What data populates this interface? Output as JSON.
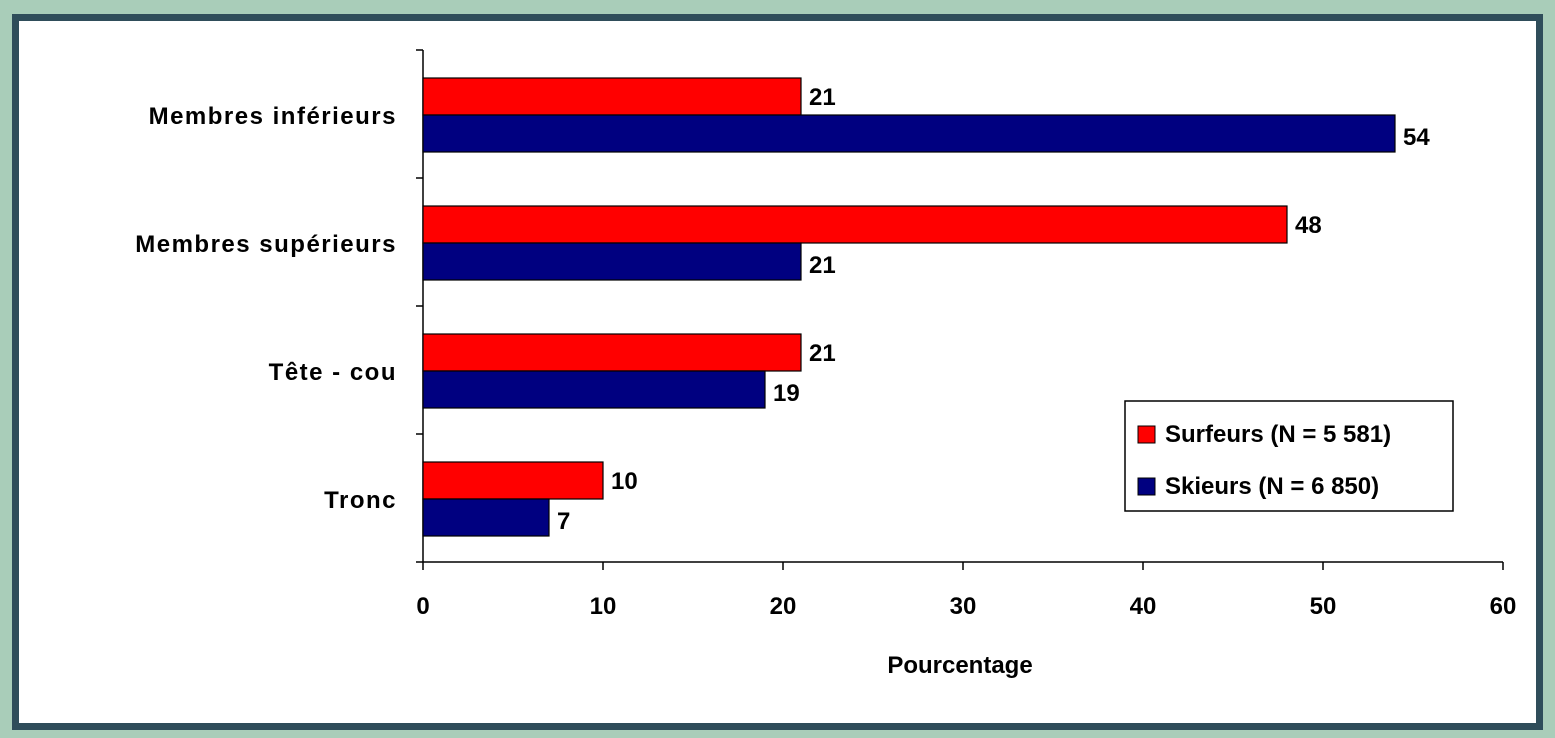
{
  "chart_data": {
    "type": "bar",
    "orientation": "horizontal",
    "categories": [
      "Membres inférieurs",
      "Membres supérieurs",
      "Tête - cou",
      "Tronc"
    ],
    "series": [
      {
        "name": "Surfeurs (N = 5 581)",
        "color": "#ff0000",
        "values": [
          21,
          48,
          21,
          10
        ]
      },
      {
        "name": "Skieurs (N = 6 850)",
        "color": "#000080",
        "values": [
          54,
          21,
          19,
          7
        ]
      }
    ],
    "data_labels": [
      [
        "21",
        "48",
        "21",
        "10"
      ],
      [
        "54",
        "21",
        "19",
        "7"
      ]
    ],
    "xlabel": "Pourcentage",
    "xlim": [
      0,
      60
    ],
    "xticks": [
      "0",
      "10",
      "20",
      "30",
      "40",
      "50",
      "60"
    ],
    "grid": false,
    "legend_position": "bottom-right"
  }
}
